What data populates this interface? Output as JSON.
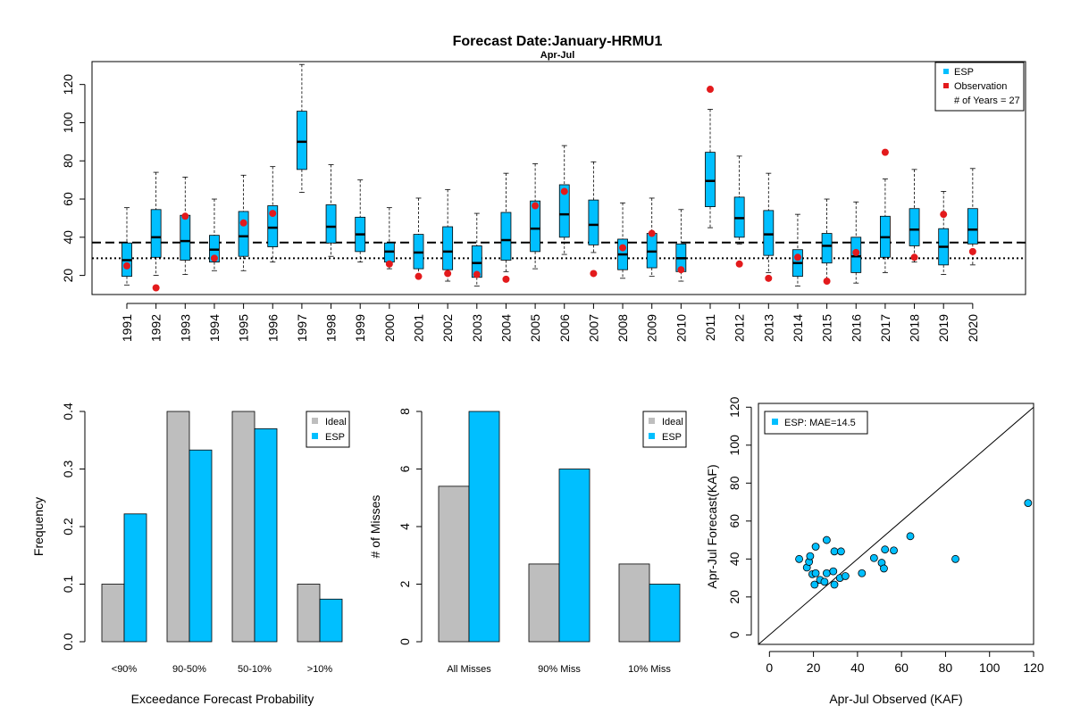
{
  "colors": {
    "esp": "#00BFFF",
    "observation": "#E31A1C",
    "ideal": "#BEBEBE"
  },
  "chart_data": [
    {
      "type": "box",
      "title": "Forecast Date:January-HRMU1",
      "subtitle": "Apr-Jul",
      "xlabel": "",
      "ylabel": "",
      "ylim": [
        10,
        132
      ],
      "yticks": [
        20,
        40,
        60,
        80,
        100,
        120
      ],
      "reference_lines": {
        "dashed": 37.2,
        "dotted": 29.0
      },
      "legend": {
        "position": "top-right",
        "entries": [
          "ESP",
          "Observation"
        ],
        "note": "# of Years = 27"
      },
      "categories": [
        "1991",
        "1992",
        "1993",
        "1994",
        "1995",
        "1996",
        "1997",
        "1998",
        "1999",
        "2000",
        "2001",
        "2002",
        "2003",
        "2004",
        "2005",
        "2006",
        "2007",
        "2008",
        "2009",
        "2010",
        "2011",
        "2012",
        "2013",
        "2014",
        "2015",
        "2016",
        "2017",
        "2018",
        "2019",
        "2020"
      ],
      "boxes": [
        {
          "min": 15.0,
          "q1": 19.5,
          "median": 28.0,
          "q3": 37.0,
          "max": 55.5
        },
        {
          "min": 20.0,
          "q1": 29.5,
          "median": 40.0,
          "q3": 54.5,
          "max": 74.0
        },
        {
          "min": 20.5,
          "q1": 28.0,
          "median": 38.0,
          "q3": 51.5,
          "max": 71.5
        },
        {
          "min": 22.5,
          "q1": 27.0,
          "median": 33.5,
          "q3": 41.0,
          "max": 60.0
        },
        {
          "min": 22.5,
          "q1": 30.0,
          "median": 40.5,
          "q3": 53.5,
          "max": 72.5
        },
        {
          "min": 27.0,
          "q1": 35.0,
          "median": 45.0,
          "q3": 56.5,
          "max": 77.0
        },
        {
          "min": 63.5,
          "q1": 75.5,
          "median": 90.0,
          "q3": 106.0,
          "max": 130.5
        },
        {
          "min": 30.0,
          "q1": 37.0,
          "median": 45.5,
          "q3": 57.0,
          "max": 78.0
        },
        {
          "min": 27.0,
          "q1": 32.5,
          "median": 41.5,
          "q3": 50.5,
          "max": 70.0
        },
        {
          "min": 23.5,
          "q1": 27.0,
          "median": 32.5,
          "q3": 37.0,
          "max": 55.5
        },
        {
          "min": 19.5,
          "q1": 23.5,
          "median": 32.0,
          "q3": 41.5,
          "max": 60.5
        },
        {
          "min": 17.0,
          "q1": 23.0,
          "median": 32.5,
          "q3": 45.5,
          "max": 65.0
        },
        {
          "min": 14.5,
          "q1": 19.0,
          "median": 26.5,
          "q3": 35.5,
          "max": 52.5
        },
        {
          "min": 22.0,
          "q1": 28.0,
          "median": 38.5,
          "q3": 53.0,
          "max": 73.5
        },
        {
          "min": 23.5,
          "q1": 32.5,
          "median": 44.5,
          "q3": 59.0,
          "max": 78.5
        },
        {
          "min": 31.0,
          "q1": 40.0,
          "median": 52.0,
          "q3": 67.5,
          "max": 88.0
        },
        {
          "min": 32.0,
          "q1": 36.0,
          "median": 46.5,
          "q3": 59.5,
          "max": 79.5
        },
        {
          "min": 18.5,
          "q1": 23.0,
          "median": 31.0,
          "q3": 39.0,
          "max": 58.0
        },
        {
          "min": 19.5,
          "q1": 24.0,
          "median": 32.5,
          "q3": 42.0,
          "max": 60.5
        },
        {
          "min": 17.0,
          "q1": 22.0,
          "median": 29.0,
          "q3": 36.5,
          "max": 54.5
        },
        {
          "min": 45.0,
          "q1": 56.0,
          "median": 69.5,
          "q3": 84.5,
          "max": 107.0
        },
        {
          "min": 36.5,
          "q1": 40.0,
          "median": 50.0,
          "q3": 61.0,
          "max": 82.5
        },
        {
          "min": 21.5,
          "q1": 30.5,
          "median": 41.5,
          "q3": 54.0,
          "max": 73.5
        },
        {
          "min": 14.5,
          "q1": 19.5,
          "median": 26.5,
          "q3": 33.5,
          "max": 52.0
        },
        {
          "min": 18.0,
          "q1": 26.5,
          "median": 35.5,
          "q3": 42.0,
          "max": 60.0
        },
        {
          "min": 16.0,
          "q1": 21.5,
          "median": 30.0,
          "q3": 40.0,
          "max": 58.5
        },
        {
          "min": 21.5,
          "q1": 29.5,
          "median": 40.0,
          "q3": 51.0,
          "max": 70.5
        },
        {
          "min": 27.0,
          "q1": 35.5,
          "median": 44.0,
          "q3": 55.0,
          "max": 75.5
        },
        {
          "min": 20.5,
          "q1": 25.5,
          "median": 35.0,
          "q3": 44.5,
          "max": 64.0
        },
        {
          "min": 25.5,
          "q1": 36.5,
          "median": 44.0,
          "q3": 55.0,
          "max": 76.0
        }
      ],
      "observations": [
        25.0,
        13.5,
        51.0,
        29.0,
        47.5,
        52.5,
        null,
        null,
        null,
        26.0,
        19.5,
        21.0,
        20.5,
        18.0,
        56.5,
        64.0,
        21.0,
        34.5,
        42.0,
        23.0,
        117.5,
        26.0,
        18.5,
        29.5,
        17.0,
        32.0,
        84.5,
        29.5,
        52.0,
        32.5
      ]
    },
    {
      "type": "bar",
      "xlabel": "Exceedance Forecast Probability",
      "ylabel": "Frequency",
      "ylim": [
        0,
        0.4
      ],
      "yticks": [
        "0.0",
        "0.1",
        "0.2",
        "0.3",
        "0.4"
      ],
      "legend": {
        "position": "top-right",
        "entries": [
          "Ideal",
          "ESP"
        ]
      },
      "categories": [
        "<90%",
        "90-50%",
        "50-10%",
        ">10%"
      ],
      "series": [
        {
          "name": "Ideal",
          "values": [
            0.1,
            0.4,
            0.4,
            0.1
          ]
        },
        {
          "name": "ESP",
          "values": [
            0.222,
            0.333,
            0.37,
            0.074
          ]
        }
      ]
    },
    {
      "type": "bar",
      "xlabel": "",
      "ylabel": "# of Misses",
      "ylim": [
        0,
        8
      ],
      "yticks": [
        "0",
        "2",
        "4",
        "6",
        "8"
      ],
      "legend": {
        "position": "top-right",
        "entries": [
          "Ideal",
          "ESP"
        ]
      },
      "categories": [
        "All Misses",
        "90% Miss",
        "10% Miss"
      ],
      "series": [
        {
          "name": "Ideal",
          "values": [
            5.4,
            2.7,
            2.7
          ]
        },
        {
          "name": "ESP",
          "values": [
            8,
            6,
            2
          ]
        }
      ]
    },
    {
      "type": "scatter",
      "xlabel": "Apr-Jul Observed (KAF)",
      "ylabel": "Apr-Jul Forecast(KAF)",
      "xlim": [
        -5,
        120
      ],
      "ylim": [
        -5,
        122
      ],
      "xticks": [
        "0",
        "20",
        "40",
        "60",
        "80",
        "100",
        "120"
      ],
      "yticks": [
        "0",
        "20",
        "40",
        "60",
        "80",
        "100",
        "120"
      ],
      "one_to_one_line": true,
      "legend": {
        "position": "top-left",
        "entries": [
          "ESP: MAE=14.5"
        ]
      },
      "series": [
        {
          "name": "ESP",
          "points": [
            [
              13.5,
              40.0
            ],
            [
              17.0,
              35.5
            ],
            [
              18.0,
              38.5
            ],
            [
              18.5,
              41.5
            ],
            [
              19.5,
              32.0
            ],
            [
              20.5,
              26.5
            ],
            [
              21.0,
              32.5
            ],
            [
              21.0,
              46.5
            ],
            [
              23.0,
              29.0
            ],
            [
              25.0,
              28.0
            ],
            [
              26.0,
              32.5
            ],
            [
              26.0,
              50.0
            ],
            [
              29.0,
              33.5
            ],
            [
              29.5,
              26.5
            ],
            [
              29.5,
              44.0
            ],
            [
              32.0,
              30.0
            ],
            [
              32.5,
              44.0
            ],
            [
              34.5,
              31.0
            ],
            [
              42.0,
              32.5
            ],
            [
              47.5,
              40.5
            ],
            [
              51.0,
              38.0
            ],
            [
              52.0,
              35.0
            ],
            [
              52.5,
              45.0
            ],
            [
              56.5,
              44.5
            ],
            [
              64.0,
              52.0
            ],
            [
              84.5,
              40.0
            ],
            [
              117.5,
              69.5
            ]
          ]
        }
      ]
    }
  ]
}
